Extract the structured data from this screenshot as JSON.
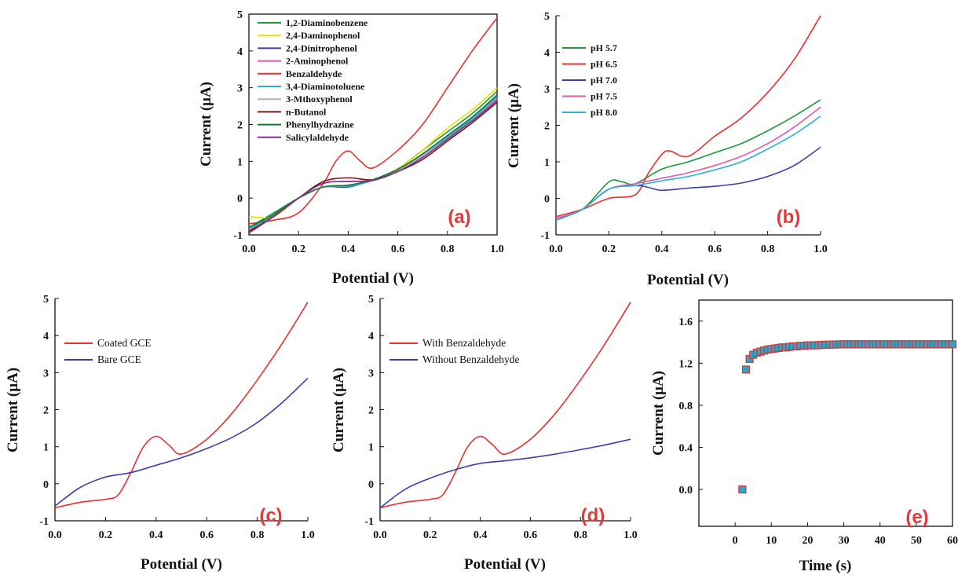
{
  "chart_data": [
    {
      "panel": "a",
      "type": "line",
      "panel_label": "(a)",
      "xlabel": "Potential (V)",
      "ylabel": "Current (μA)",
      "xlim": [
        0,
        1.0
      ],
      "ylim": [
        -1,
        5
      ],
      "xticks": [
        0.0,
        0.2,
        0.4,
        0.6,
        0.8,
        1.0
      ],
      "xtick_labels": [
        "0.0",
        "0.2",
        "0.4",
        "0.6",
        "0.8",
        "1.0"
      ],
      "yticks": [
        -1,
        0,
        1,
        2,
        3,
        4,
        5
      ],
      "ytick_labels": [
        "-1",
        "0",
        "1",
        "2",
        "3",
        "4",
        "5"
      ],
      "legend_position": "top-left",
      "series": [
        {
          "name": "1,2-Diaminobenzene",
          "color": "#1a9a3a",
          "x": [
            0,
            0.1,
            0.2,
            0.3,
            0.4,
            0.5,
            0.6,
            0.7,
            0.8,
            0.9,
            1.0
          ],
          "y": [
            -0.8,
            -0.4,
            0.0,
            0.3,
            0.35,
            0.5,
            0.8,
            1.3,
            1.8,
            2.3,
            2.9
          ]
        },
        {
          "name": "2,4-Daminophenol",
          "color": "#e8e000",
          "x": [
            0,
            0.1,
            0.2,
            0.3,
            0.4,
            0.5,
            0.6,
            0.7,
            0.8,
            0.9,
            1.0
          ],
          "y": [
            -0.5,
            -0.5,
            0.0,
            0.3,
            0.35,
            0.5,
            0.8,
            1.3,
            1.9,
            2.4,
            3.0
          ]
        },
        {
          "name": "2,4-Dinitrophenol",
          "color": "#3b3fae",
          "x": [
            0,
            0.1,
            0.2,
            0.3,
            0.4,
            0.5,
            0.6,
            0.7,
            0.8,
            0.9,
            1.0
          ],
          "y": [
            -0.85,
            -0.45,
            0.0,
            0.3,
            0.3,
            0.5,
            0.78,
            1.2,
            1.7,
            2.2,
            2.8
          ]
        },
        {
          "name": "2-Aminophenol",
          "color": "#e05aa6",
          "x": [
            0,
            0.1,
            0.2,
            0.3,
            0.4,
            0.5,
            0.6,
            0.7,
            0.8,
            0.9,
            1.0
          ],
          "y": [
            -0.9,
            -0.5,
            0.0,
            0.4,
            0.45,
            0.48,
            0.75,
            1.15,
            1.65,
            2.15,
            2.7
          ]
        },
        {
          "name": "Benzaldehyde",
          "color": "#e83030",
          "x": [
            0,
            0.1,
            0.2,
            0.3,
            0.35,
            0.4,
            0.45,
            0.5,
            0.6,
            0.7,
            0.8,
            0.9,
            1.0
          ],
          "y": [
            -0.7,
            -0.6,
            -0.4,
            0.4,
            1.0,
            1.28,
            1.0,
            0.82,
            1.3,
            2.0,
            3.0,
            4.0,
            4.9
          ]
        },
        {
          "name": "3,4-Diaminotoluene",
          "color": "#28b4d2",
          "x": [
            0,
            0.1,
            0.2,
            0.3,
            0.4,
            0.5,
            0.6,
            0.7,
            0.8,
            0.9,
            1.0
          ],
          "y": [
            -0.85,
            -0.45,
            0.0,
            0.3,
            0.32,
            0.48,
            0.75,
            1.15,
            1.65,
            2.15,
            2.75
          ]
        },
        {
          "name": "3-Mthoxyphenol",
          "color": "#b4b4b4",
          "x": [
            0,
            0.1,
            0.2,
            0.3,
            0.4,
            0.5,
            0.6,
            0.7,
            0.8,
            0.9,
            1.0
          ],
          "y": [
            -0.9,
            -0.5,
            0.0,
            0.3,
            0.35,
            0.5,
            0.75,
            1.15,
            1.6,
            2.1,
            2.65
          ]
        },
        {
          "name": "n-Butanol",
          "color": "#7a1616",
          "x": [
            0,
            0.1,
            0.2,
            0.3,
            0.4,
            0.5,
            0.6,
            0.7,
            0.8,
            0.9,
            1.0
          ],
          "y": [
            -0.9,
            -0.5,
            0.0,
            0.45,
            0.55,
            0.5,
            0.72,
            1.05,
            1.55,
            2.05,
            2.6
          ]
        },
        {
          "name": "Phenylhydrazine",
          "color": "#0e7a3c",
          "x": [
            0,
            0.1,
            0.2,
            0.3,
            0.4,
            0.5,
            0.6,
            0.7,
            0.8,
            0.9,
            1.0
          ],
          "y": [
            -0.8,
            -0.45,
            0.0,
            0.3,
            0.35,
            0.5,
            0.78,
            1.2,
            1.7,
            2.2,
            2.8
          ]
        },
        {
          "name": "Salicylaldehyde",
          "color": "#8a2a86",
          "x": [
            0,
            0.1,
            0.2,
            0.3,
            0.4,
            0.5,
            0.6,
            0.7,
            0.8,
            0.9,
            1.0
          ],
          "y": [
            -0.95,
            -0.5,
            0.0,
            0.4,
            0.45,
            0.48,
            0.72,
            1.1,
            1.6,
            2.1,
            2.65
          ]
        }
      ]
    },
    {
      "panel": "b",
      "type": "line",
      "panel_label": "(b)",
      "xlabel": "Potential (V)",
      "ylabel": "Current (μA)",
      "xlim": [
        0,
        1.0
      ],
      "ylim": [
        -1,
        5
      ],
      "xticks": [
        0.0,
        0.2,
        0.4,
        0.6,
        0.8,
        1.0
      ],
      "xtick_labels": [
        "0.0",
        "0.2",
        "0.4",
        "0.6",
        "0.8",
        "1.0"
      ],
      "yticks": [
        -1,
        0,
        1,
        2,
        3,
        4,
        5
      ],
      "ytick_labels": [
        "-1",
        "0",
        "1",
        "2",
        "3",
        "4",
        "5"
      ],
      "legend_position": "top-left",
      "series": [
        {
          "name": "pH 5.7",
          "color": "#1a9a3a",
          "x": [
            0,
            0.1,
            0.2,
            0.25,
            0.3,
            0.4,
            0.5,
            0.6,
            0.7,
            0.8,
            0.9,
            1.0
          ],
          "y": [
            -0.55,
            -0.3,
            0.45,
            0.45,
            0.4,
            0.8,
            1.0,
            1.25,
            1.5,
            1.85,
            2.25,
            2.7
          ]
        },
        {
          "name": "pH 6.5",
          "color": "#e83030",
          "x": [
            0,
            0.1,
            0.2,
            0.3,
            0.35,
            0.4,
            0.43,
            0.5,
            0.6,
            0.7,
            0.8,
            0.9,
            1.0
          ],
          "y": [
            -0.5,
            -0.3,
            0.0,
            0.1,
            0.7,
            1.2,
            1.3,
            1.15,
            1.7,
            2.2,
            2.9,
            3.8,
            5.0
          ]
        },
        {
          "name": "pH 7.0",
          "color": "#3b3fae",
          "x": [
            0,
            0.1,
            0.2,
            0.3,
            0.35,
            0.4,
            0.5,
            0.6,
            0.7,
            0.8,
            0.9,
            1.0
          ],
          "y": [
            -0.6,
            -0.3,
            0.25,
            0.35,
            0.3,
            0.22,
            0.28,
            0.33,
            0.42,
            0.6,
            0.9,
            1.4
          ]
        },
        {
          "name": "pH 7.5",
          "color": "#e05aa6",
          "x": [
            0,
            0.1,
            0.2,
            0.3,
            0.4,
            0.5,
            0.6,
            0.7,
            0.8,
            0.9,
            1.0
          ],
          "y": [
            -0.55,
            -0.3,
            0.25,
            0.4,
            0.55,
            0.7,
            0.9,
            1.15,
            1.5,
            1.95,
            2.5
          ]
        },
        {
          "name": "pH 8.0",
          "color": "#28b4d2",
          "x": [
            0,
            0.1,
            0.2,
            0.3,
            0.4,
            0.5,
            0.6,
            0.7,
            0.8,
            0.9,
            1.0
          ],
          "y": [
            -0.6,
            -0.3,
            0.25,
            0.35,
            0.48,
            0.6,
            0.78,
            1.0,
            1.35,
            1.75,
            2.25
          ]
        }
      ]
    },
    {
      "panel": "c",
      "type": "line",
      "panel_label": "(c)",
      "xlabel": "Potential (V)",
      "ylabel": "Current (μA)",
      "xlim": [
        0,
        1.0
      ],
      "ylim": [
        -1,
        5
      ],
      "xticks": [
        0.0,
        0.2,
        0.4,
        0.6,
        0.8,
        1.0
      ],
      "xtick_labels": [
        "0.0",
        "0.2",
        "0.4",
        "0.6",
        "0.8",
        "1.0"
      ],
      "yticks": [
        -1,
        0,
        1,
        2,
        3,
        4,
        5
      ],
      "ytick_labels": [
        "-1",
        "0",
        "1",
        "2",
        "3",
        "4",
        "5"
      ],
      "legend_position": "top-left",
      "series": [
        {
          "name": "Coated GCE",
          "color": "#e83030",
          "x": [
            0,
            0.1,
            0.2,
            0.25,
            0.3,
            0.35,
            0.4,
            0.45,
            0.5,
            0.6,
            0.7,
            0.8,
            0.9,
            1.0
          ],
          "y": [
            -0.65,
            -0.5,
            -0.42,
            -0.3,
            0.3,
            1.0,
            1.28,
            1.05,
            0.8,
            1.2,
            1.9,
            2.8,
            3.8,
            4.9
          ]
        },
        {
          "name": "Bare GCE",
          "color": "#3b3fae",
          "x": [
            0,
            0.1,
            0.2,
            0.3,
            0.4,
            0.5,
            0.6,
            0.7,
            0.8,
            0.9,
            1.0
          ],
          "y": [
            -0.6,
            -0.1,
            0.18,
            0.3,
            0.5,
            0.7,
            0.95,
            1.25,
            1.65,
            2.2,
            2.85
          ]
        }
      ]
    },
    {
      "panel": "d",
      "type": "line",
      "panel_label": "(d)",
      "xlabel": "Potential (V)",
      "ylabel": "Current (μA)",
      "xlim": [
        0,
        1.0
      ],
      "ylim": [
        -1,
        5
      ],
      "xticks": [
        0.0,
        0.2,
        0.4,
        0.6,
        0.8,
        1.0
      ],
      "xtick_labels": [
        "0.0",
        "0.2",
        "0.4",
        "0.6",
        "0.8",
        "1.0"
      ],
      "yticks": [
        -1,
        0,
        1,
        2,
        3,
        4,
        5
      ],
      "ytick_labels": [
        "-1",
        "0",
        "1",
        "2",
        "3",
        "4",
        "5"
      ],
      "legend_position": "top-left",
      "series": [
        {
          "name": "With Benzaldehyde",
          "color": "#e83030",
          "x": [
            0,
            0.1,
            0.2,
            0.25,
            0.3,
            0.35,
            0.4,
            0.45,
            0.5,
            0.6,
            0.7,
            0.8,
            0.9,
            1.0
          ],
          "y": [
            -0.65,
            -0.5,
            -0.42,
            -0.3,
            0.3,
            1.0,
            1.28,
            1.05,
            0.8,
            1.2,
            1.9,
            2.8,
            3.8,
            4.9
          ]
        },
        {
          "name": "Without Benzaldehyde",
          "color": "#3b3fae",
          "x": [
            0,
            0.1,
            0.2,
            0.3,
            0.4,
            0.5,
            0.6,
            0.7,
            0.8,
            0.9,
            1.0
          ],
          "y": [
            -0.65,
            -0.15,
            0.15,
            0.38,
            0.55,
            0.62,
            0.7,
            0.8,
            0.92,
            1.05,
            1.2
          ]
        }
      ]
    },
    {
      "panel": "e",
      "type": "scatter",
      "panel_label": "(e)",
      "xlabel": "Time (s)",
      "ylabel": "Current (μA)",
      "xlim": [
        -10,
        60
      ],
      "ylim": [
        -0.35,
        1.8
      ],
      "xticks": [
        0,
        10,
        20,
        30,
        40,
        50,
        60
      ],
      "xtick_labels": [
        "0",
        "10",
        "20",
        "30",
        "40",
        "50",
        "60"
      ],
      "yticks": [
        0.0,
        0.4,
        0.8,
        1.2,
        1.6
      ],
      "ytick_labels": [
        "0.0",
        "0.4",
        "0.8",
        "1.2",
        "1.6"
      ],
      "marker_fill": "#2fa3c8",
      "marker_edge": "#d03a3a",
      "x": [
        2,
        3,
        4,
        5,
        6,
        7,
        8,
        9,
        10,
        11,
        12,
        13,
        14,
        15,
        16,
        17,
        18,
        19,
        20,
        21,
        22,
        23,
        24,
        25,
        26,
        27,
        28,
        29,
        30,
        31,
        32,
        33,
        34,
        35,
        36,
        37,
        38,
        39,
        40,
        41,
        42,
        43,
        44,
        45,
        46,
        47,
        48,
        49,
        50,
        51,
        52,
        53,
        54,
        55,
        56,
        57,
        58,
        59,
        60
      ],
      "y": [
        0.0,
        1.14,
        1.24,
        1.28,
        1.3,
        1.31,
        1.32,
        1.33,
        1.335,
        1.34,
        1.345,
        1.35,
        1.35,
        1.355,
        1.36,
        1.36,
        1.365,
        1.365,
        1.37,
        1.37,
        1.37,
        1.372,
        1.374,
        1.375,
        1.376,
        1.377,
        1.378,
        1.379,
        1.38,
        1.38,
        1.38,
        1.38,
        1.38,
        1.38,
        1.38,
        1.38,
        1.38,
        1.38,
        1.38,
        1.38,
        1.38,
        1.38,
        1.38,
        1.38,
        1.38,
        1.38,
        1.38,
        1.38,
        1.38,
        1.38,
        1.38,
        1.38,
        1.38,
        1.38,
        1.38,
        1.38,
        1.38,
        1.38,
        1.38
      ]
    }
  ]
}
